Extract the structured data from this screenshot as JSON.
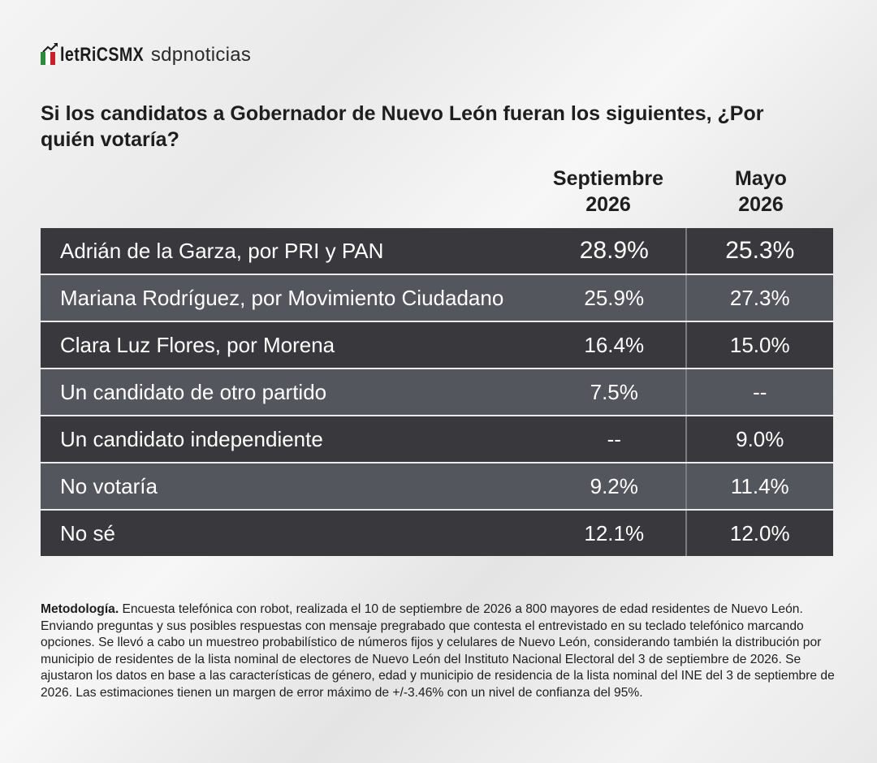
{
  "header": {
    "logo_metrics": "letRiCSMX",
    "logo_sdp": "sdpnoticias",
    "colors": {
      "green": "#2f8a3c",
      "white": "#ffffff",
      "red": "#c8202a",
      "dark": "#1c1c1c"
    }
  },
  "question": "Si los candidatos a Gobernador de Nuevo León fueran los siguientes, ¿Por quién votaría?",
  "columns": [
    {
      "line1": "Septiembre",
      "line2": "2026"
    },
    {
      "line1": "Mayo",
      "line2": "2026"
    }
  ],
  "rows": [
    {
      "name": "Adrián de la Garza, por PRI y PAN",
      "sep": "28.9%",
      "may": "25.3%"
    },
    {
      "name": "Mariana Rodríguez, por Movimiento Ciudadano",
      "sep": "25.9%",
      "may": "27.3%"
    },
    {
      "name": "Clara Luz Flores, por Morena",
      "sep": "16.4%",
      "may": "15.0%"
    },
    {
      "name": "Un candidato de otro partido",
      "sep": "7.5%",
      "may": "--"
    },
    {
      "name": "Un candidato independiente",
      "sep": "--",
      "may": "9.0%"
    },
    {
      "name": "No votaría",
      "sep": "9.2%",
      "may": "11.4%"
    },
    {
      "name": "No sé",
      "sep": "12.1%",
      "may": "12.0%"
    }
  ],
  "methodology": {
    "label": "Metodología.",
    "text": " Encuesta telefónica con robot, realizada el 10 de septiembre de 2026 a 800 mayores de edad residentes de Nuevo León. Enviando preguntas y sus posibles respuestas con mensaje pregrabado que contesta el entrevistado en su teclado telefónico marcando opciones. Se llevó a cabo un muestreo probabilístico de números fijos y celulares de Nuevo León, considerando también la distribución por municipio de residentes de la lista nominal de electores de Nuevo León del Instituto Nacional Electoral del 3 de septiembre de 2026. Se ajustaron los datos en base a las características de género, edad y municipio de residencia de la lista nominal del INE del 3 de septiembre de 2026. Las estimaciones tienen un margen de error máximo de +/-3.46% con un nivel de confianza del 95%."
  },
  "chart_data": {
    "type": "table",
    "title": "Si los candidatos a Gobernador de Nuevo León fueran los siguientes, ¿Por quién votaría?",
    "categories": [
      "Adrián de la Garza, por PRI y PAN",
      "Mariana Rodríguez, por Movimiento Ciudadano",
      "Clara Luz Flores, por Morena",
      "Un candidato de otro partido",
      "Un candidato independiente",
      "No votaría",
      "No sé"
    ],
    "series": [
      {
        "name": "Septiembre 2026",
        "values": [
          28.9,
          25.9,
          16.4,
          7.5,
          null,
          9.2,
          12.1
        ]
      },
      {
        "name": "Mayo 2026",
        "values": [
          25.3,
          27.3,
          15.0,
          null,
          9.0,
          11.4,
          12.0
        ]
      }
    ]
  }
}
